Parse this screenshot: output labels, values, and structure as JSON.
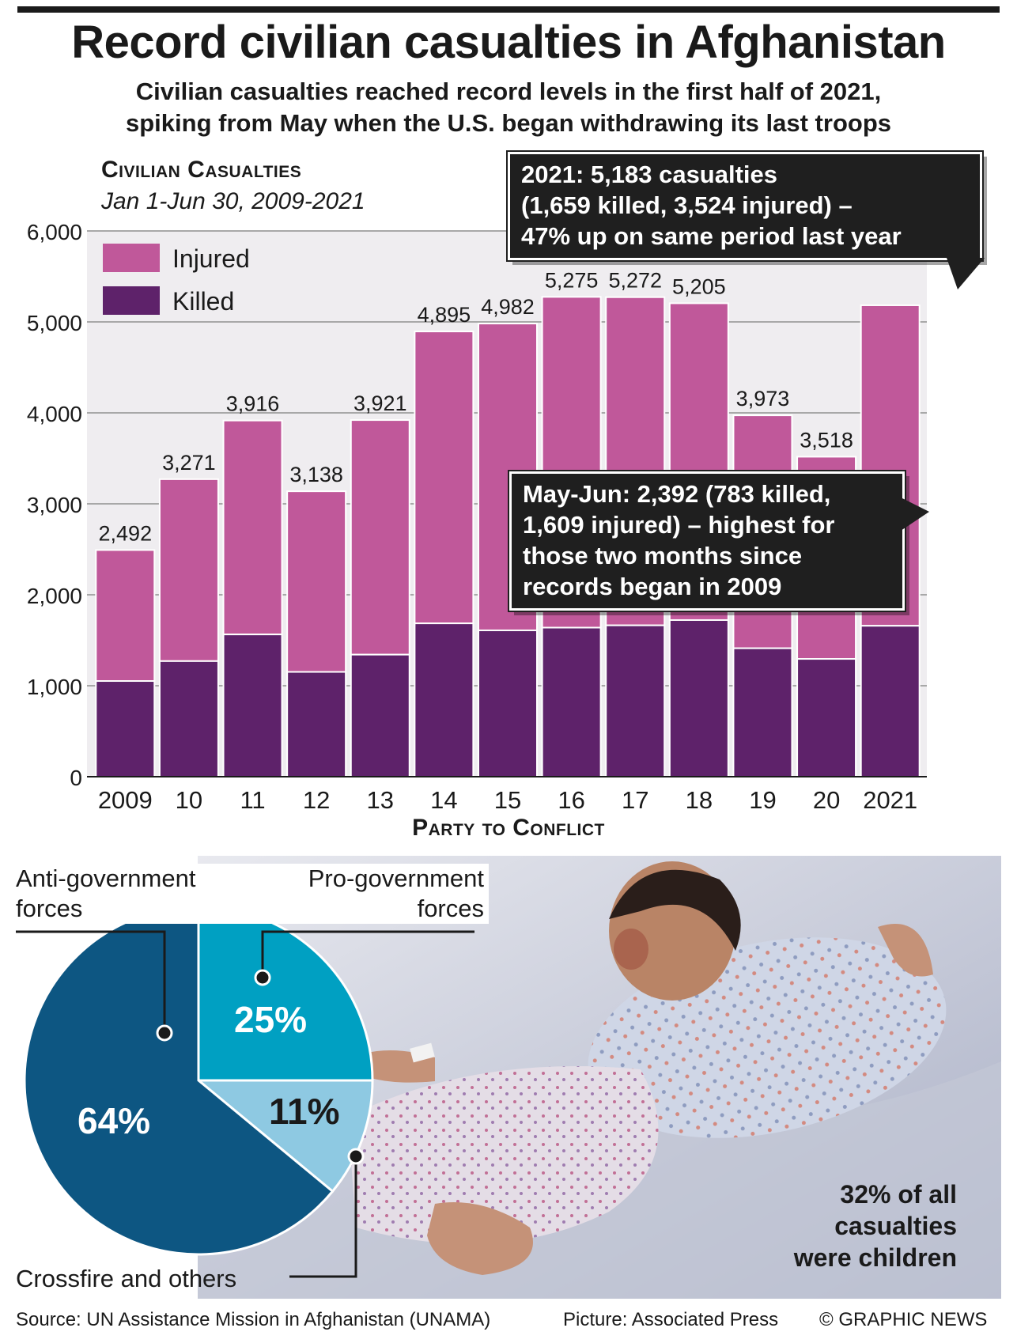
{
  "title": "Record civilian casualties in Afghanistan",
  "subtitle_line1": "Civilian casualties reached record levels in the first half of 2021,",
  "subtitle_line2": "spiking from May when the U.S. began withdrawing its last troops",
  "chart_data": [
    {
      "type": "bar",
      "stacked": true,
      "title": "Civilian Casualties",
      "subtitle": "Jan 1-Jun 30, 2009-2021",
      "categories": [
        "2009",
        "10",
        "11",
        "12",
        "13",
        "14",
        "15",
        "16",
        "17",
        "18",
        "19",
        "20",
        "2021"
      ],
      "totals": [
        2492,
        3271,
        3916,
        3138,
        3921,
        4895,
        4982,
        5275,
        5272,
        5205,
        3973,
        3518,
        5183
      ],
      "total_labels": [
        "2,492",
        "3,271",
        "3,916",
        "3,138",
        "3,921",
        "4,895",
        "4,982",
        "5,275",
        "5,272",
        "5,205",
        "3,973",
        "3,518",
        ""
      ],
      "series": [
        {
          "name": "Killed",
          "color": "#5e226a",
          "values": [
            1052,
            1271,
            1564,
            1152,
            1342,
            1686,
            1609,
            1639,
            1664,
            1722,
            1412,
            1295,
            1659
          ]
        },
        {
          "name": "Injured",
          "color": "#c0589a",
          "values": [
            1440,
            2000,
            2352,
            1986,
            2579,
            3209,
            3373,
            3636,
            3608,
            3483,
            2561,
            2223,
            3524
          ]
        }
      ],
      "ylim": [
        0,
        6000
      ],
      "yticks": [
        0,
        1000,
        2000,
        3000,
        4000,
        5000,
        6000
      ],
      "ytick_labels": [
        "0",
        "1,000",
        "2,000",
        "3,000",
        "4,000",
        "5,000",
        "6,000"
      ],
      "grid": true,
      "legend": "top-left",
      "background": "#efedf0",
      "annotations": [
        {
          "lines": [
            "2021: 5,183 casualties",
            "(1,659 killed, 3,524 injured) –",
            "47% up on same period last year"
          ]
        },
        {
          "lines": [
            "May-Jun: 2,392 (783 killed,",
            "1,609 injured) – highest for",
            "those two months since",
            "records began in 2009"
          ]
        }
      ]
    },
    {
      "type": "pie",
      "title": "Party to Conflict",
      "slices": [
        {
          "name_line1": "Anti-government",
          "name_line2": "forces",
          "value": 64,
          "label": "64%",
          "color": "#0d5682"
        },
        {
          "name_line1": "Pro-government",
          "name_line2": "forces",
          "value": 25,
          "label": "25%",
          "color": "#00a0c2"
        },
        {
          "name_line1": "Crossfire and others",
          "name_line2": "",
          "value": 11,
          "label": "11%",
          "color": "#8ec9e2"
        }
      ]
    }
  ],
  "note_lines": [
    "32% of all",
    "casualties",
    "were children"
  ],
  "footer": {
    "source": "Source: UN Assistance Mission in Afghanistan (UNAMA)",
    "picture": "Picture: Associated Press",
    "copyright": "© GRAPHIC NEWS"
  }
}
